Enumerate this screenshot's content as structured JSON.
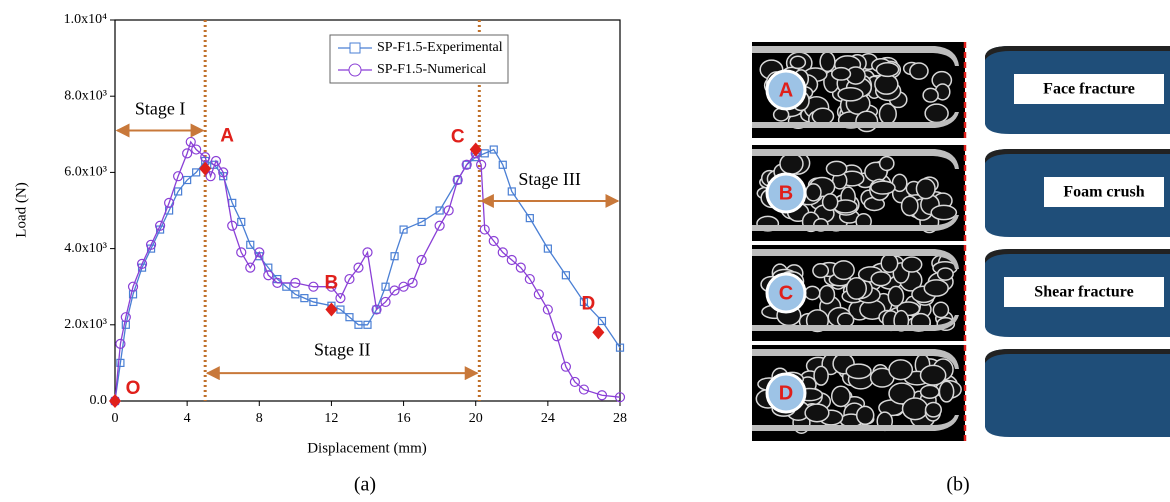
{
  "chart_data": {
    "type": "line",
    "x_label": "Displacement (mm)",
    "y_label": "Load (N)",
    "xlim": [
      0,
      28
    ],
    "xticks": [
      0,
      4,
      8,
      12,
      16,
      20,
      24,
      28
    ],
    "ylim": [
      0,
      10000
    ],
    "yticks": [
      {
        "value": 0,
        "label": "0.0"
      },
      {
        "value": 2000,
        "label": "2.0x10³"
      },
      {
        "value": 4000,
        "label": "4.0x10³"
      },
      {
        "value": 6000,
        "label": "6.0x10³"
      },
      {
        "value": 8000,
        "label": "8.0x10³"
      },
      {
        "value": 10000,
        "label": "1.0x10⁴"
      }
    ],
    "legend": "upper center",
    "series": [
      {
        "name": "SP-F1.5-Experimental",
        "color": "#4a7fd4",
        "marker": "square",
        "x": [
          0,
          0.3,
          0.6,
          1,
          1.5,
          2,
          2.5,
          3,
          3.5,
          4,
          4.5,
          5,
          5.5,
          6,
          6.5,
          7,
          7.5,
          8,
          8.5,
          9,
          9.5,
          10,
          10.5,
          11,
          12,
          12.5,
          13,
          13.5,
          14,
          14.5,
          15,
          15.5,
          16,
          17,
          18,
          19,
          19.5,
          20,
          20.5,
          21,
          21.5,
          22,
          23,
          24,
          25,
          26,
          27,
          28
        ],
        "values": [
          0,
          1000,
          2000,
          2800,
          3500,
          4000,
          4500,
          5000,
          5500,
          5800,
          6000,
          6300,
          6200,
          5900,
          5200,
          4700,
          4100,
          3800,
          3500,
          3200,
          3000,
          2800,
          2700,
          2600,
          2500,
          2400,
          2200,
          2000,
          2000,
          2400,
          3000,
          3800,
          4500,
          4700,
          5000,
          5800,
          6200,
          6400,
          6500,
          6600,
          6200,
          5500,
          4800,
          4000,
          3300,
          2600,
          2100,
          1400
        ]
      },
      {
        "name": "SP-F1.5-Numerical",
        "color": "#8a3fd6",
        "marker": "circle",
        "x": [
          0,
          0.3,
          0.6,
          1,
          1.5,
          2,
          2.5,
          3,
          3.5,
          4,
          4.2,
          4.5,
          5,
          5.3,
          5.6,
          6,
          6.5,
          7,
          7.5,
          8,
          8.5,
          9,
          10,
          11,
          12,
          12.5,
          13,
          13.5,
          14,
          14.5,
          15,
          15.5,
          16,
          16.5,
          17,
          18,
          18.5,
          19,
          19.5,
          20,
          20.3,
          20.5,
          21,
          21.5,
          22,
          22.5,
          23,
          23.5,
          24,
          24.5,
          25,
          25.5,
          26,
          27,
          28
        ],
        "values": [
          0,
          1500,
          2200,
          3000,
          3600,
          4100,
          4600,
          5200,
          5900,
          6500,
          6800,
          6600,
          6400,
          5900,
          6300,
          6000,
          4600,
          3900,
          3500,
          3900,
          3300,
          3100,
          3100,
          3000,
          3000,
          2700,
          3200,
          3500,
          3900,
          2400,
          2600,
          2900,
          3000,
          3100,
          3700,
          4600,
          5000,
          5800,
          6200,
          6500,
          6200,
          4500,
          4200,
          3900,
          3700,
          3500,
          3200,
          2800,
          2400,
          1700,
          900,
          500,
          300,
          150,
          100
        ]
      }
    ],
    "points": [
      {
        "label": "O",
        "x": 0,
        "y": 0
      },
      {
        "label": "A",
        "x": 5,
        "y": 6100
      },
      {
        "label": "B",
        "x": 12,
        "y": 2400
      },
      {
        "label": "C",
        "x": 20,
        "y": 6600
      },
      {
        "label": "D",
        "x": 26.8,
        "y": 1800
      }
    ],
    "vlines": [
      5,
      20.2
    ],
    "stages": [
      {
        "label": "Stage I",
        "x": [
          0,
          5
        ],
        "y": 7100
      },
      {
        "label": "Stage II",
        "x": [
          5,
          20.2
        ],
        "y": 730
      },
      {
        "label": "Stage III",
        "x": [
          20.2,
          28
        ],
        "y": 5250
      }
    ]
  },
  "panel_b": {
    "rows": [
      {
        "letter": "A",
        "label": "Face fracture"
      },
      {
        "letter": "B",
        "label": "Foam crush"
      },
      {
        "letter": "C",
        "label": "Shear fracture"
      },
      {
        "letter": "D"
      }
    ]
  },
  "captions": [
    "(a)",
    "(b)"
  ]
}
